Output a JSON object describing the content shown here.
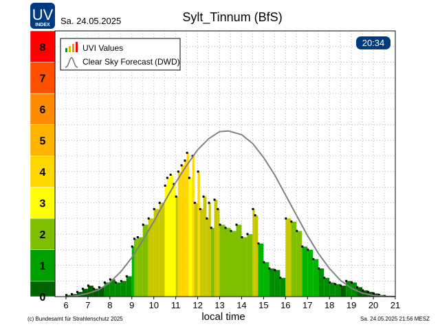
{
  "header": {
    "logo_top": "UV",
    "logo_bottom": "INDEX",
    "date": "Sa. 24.05.2025",
    "title": "Sylt_Tinnum (BfS)",
    "time_badge": "20:34"
  },
  "legend": {
    "uvi_label": "UVI Values",
    "clear_sky_label": "Clear Sky Forecast",
    "clear_sky_source": "(DWD)"
  },
  "footer": {
    "copyright": "(c) Bundesamt für Strahlenschutz 2025",
    "timestamp": "Sa. 24.05.2025  21:56  MESZ"
  },
  "colors": {
    "uvi_scale": [
      "#005d00",
      "#008c00",
      "#00b400",
      "#7fbf00",
      "#c8c800",
      "#ffff00",
      "#ffd700",
      "#ffb400",
      "#ff8c00",
      "#ff6400",
      "#ff3200",
      "#ff0000"
    ],
    "curve": "#808080",
    "badge_bg": "#003a80",
    "logo_bg": "#003a80"
  },
  "chart_data": {
    "type": "bar",
    "title": "Sylt_Tinnum (BfS)",
    "xlabel": "local time",
    "ylabel": "UV index",
    "xlim": [
      5.5,
      21
    ],
    "ylim": [
      0,
      8.5
    ],
    "x_ticks": [
      6,
      7,
      8,
      9,
      10,
      11,
      12,
      13,
      14,
      15,
      16,
      17,
      18,
      19,
      20,
      21
    ],
    "y_scale_labels": [
      "0",
      "1",
      "2",
      "3",
      "4",
      "5",
      "6",
      "7",
      "8"
    ],
    "grid": true,
    "clear_sky_forecast": {
      "peak_time": 13.4,
      "peak_uvi": 5.3,
      "x": [
        6.0,
        6.5,
        7.0,
        7.5,
        8.0,
        8.5,
        9.0,
        9.5,
        10.0,
        10.5,
        11.0,
        11.5,
        12.0,
        12.5,
        13.0,
        13.4,
        14.0,
        14.5,
        15.0,
        15.5,
        16.0,
        16.5,
        17.0,
        17.5,
        18.0,
        18.5,
        19.0,
        19.5,
        20.0,
        20.5,
        21.0
      ],
      "uvi": [
        0.0,
        0.03,
        0.1,
        0.22,
        0.45,
        0.8,
        1.25,
        1.8,
        2.4,
        3.05,
        3.65,
        4.2,
        4.7,
        5.05,
        5.28,
        5.3,
        5.18,
        4.9,
        4.45,
        3.9,
        3.25,
        2.6,
        1.95,
        1.38,
        0.9,
        0.52,
        0.27,
        0.11,
        0.04,
        0.01,
        0.0
      ]
    },
    "uvi_measurements": {
      "x": [
        6.0,
        6.25,
        6.5,
        6.75,
        7.0,
        7.25,
        7.5,
        7.75,
        8.0,
        8.25,
        8.5,
        8.75,
        9.0,
        9.1,
        9.25,
        9.5,
        9.75,
        10.0,
        10.25,
        10.5,
        10.6,
        10.75,
        10.9,
        11.0,
        11.1,
        11.25,
        11.4,
        11.5,
        11.6,
        11.75,
        11.85,
        12.0,
        12.1,
        12.25,
        12.4,
        12.5,
        12.6,
        12.75,
        12.9,
        13.0,
        13.25,
        13.5,
        13.75,
        14.0,
        14.25,
        14.5,
        14.6,
        14.75,
        15.0,
        15.25,
        15.5,
        15.75,
        16.0,
        16.25,
        16.5,
        16.75,
        17.0,
        17.25,
        17.5,
        17.75,
        18.0,
        18.25,
        18.5,
        18.75,
        19.0,
        19.25,
        19.5,
        19.75,
        20.0,
        20.25,
        20.5
      ],
      "uvi": [
        0.05,
        0.08,
        0.15,
        0.25,
        0.35,
        0.25,
        0.3,
        0.45,
        0.55,
        0.45,
        0.5,
        0.65,
        1.6,
        1.85,
        1.9,
        2.3,
        2.5,
        2.8,
        3.0,
        3.55,
        3.8,
        3.9,
        3.6,
        3.2,
        4.0,
        4.2,
        4.35,
        4.6,
        3.8,
        4.5,
        3.0,
        4.0,
        2.8,
        3.2,
        2.5,
        3.0,
        2.2,
        3.1,
        2.8,
        2.3,
        2.2,
        2.1,
        2.3,
        1.9,
        2.0,
        2.8,
        2.6,
        1.7,
        1.1,
        0.9,
        0.85,
        0.6,
        2.5,
        2.4,
        2.1,
        1.6,
        1.5,
        1.2,
        0.9,
        0.6,
        0.45,
        0.4,
        0.35,
        0.5,
        0.45,
        0.3,
        0.2,
        0.15,
        0.1,
        0.05,
        0.02
      ]
    }
  }
}
